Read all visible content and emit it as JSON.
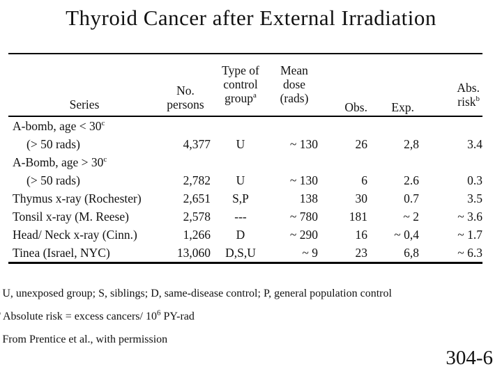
{
  "slide": {
    "title": "Thyroid Cancer after External Irradiation",
    "page_number": "304-6"
  },
  "table": {
    "header": {
      "series": "Series",
      "persons": [
        "No.",
        "persons"
      ],
      "control": [
        "Type of",
        "control",
        "group"
      ],
      "control_sup": "a",
      "dose": [
        "Mean",
        "dose",
        "(rads)"
      ],
      "obs": "Obs.",
      "exp": "Exp.",
      "abs_risk": [
        "Abs.",
        "risk"
      ],
      "abs_risk_sup": "b"
    },
    "rows": [
      {
        "label": "A-bomb, age < 30",
        "label_sup": "c",
        "persons": "",
        "control": "",
        "dose": "",
        "obs": "",
        "exp": "",
        "risk": ""
      },
      {
        "label": "(> 50 rads)",
        "label_sup": "",
        "persons": "4,377",
        "control": "U",
        "dose": "~ 130",
        "obs": "26",
        "exp": "2,8",
        "risk": "3.4"
      },
      {
        "label": "A-Bomb, age > 30",
        "label_sup": "c",
        "persons": "",
        "control": "",
        "dose": "",
        "obs": "",
        "exp": "",
        "risk": ""
      },
      {
        "label": "(> 50 rads)",
        "label_sup": "",
        "persons": "2,782",
        "control": "U",
        "dose": "~ 130",
        "obs": "6",
        "exp": "2.6",
        "risk": "0.3"
      },
      {
        "label": "Thymus x-ray (Rochester)",
        "label_sup": "",
        "persons": "2,651",
        "control": "S,P",
        "dose": "138",
        "obs": "30",
        "exp": "0.7",
        "risk": "3.5"
      },
      {
        "label": "Tonsil x-ray (M. Reese)",
        "label_sup": "",
        "persons": "2,578",
        "control": "---",
        "dose": "~ 780",
        "obs": "181",
        "exp": "~ 2",
        "risk": "~ 3.6"
      },
      {
        "label": "Head/ Neck x-ray (Cinn.)",
        "label_sup": "",
        "persons": "1,266",
        "control": "D",
        "dose": "~ 290",
        "obs": "16",
        "exp": "~ 0,4",
        "risk": "~ 1.7"
      },
      {
        "label": "Tinea (Israel, NYC)",
        "label_sup": "",
        "persons": "13,060",
        "control": "D,S,U",
        "dose": "~ 9",
        "obs": "23",
        "exp": "6,8",
        "risk": "~ 6.3"
      }
    ]
  },
  "footnotes": {
    "a_marker": "a",
    "a_text": "U, unexposed group; S, siblings; D, same-disease control; P, general population control",
    "b_marker": "b",
    "b_text_pre": "Absolute risk = excess cancers/ 10",
    "b_sup": "6",
    "b_text_post": " PY-rad",
    "c_marker": "c",
    "c_text": "From Prentice et al., with permission"
  }
}
